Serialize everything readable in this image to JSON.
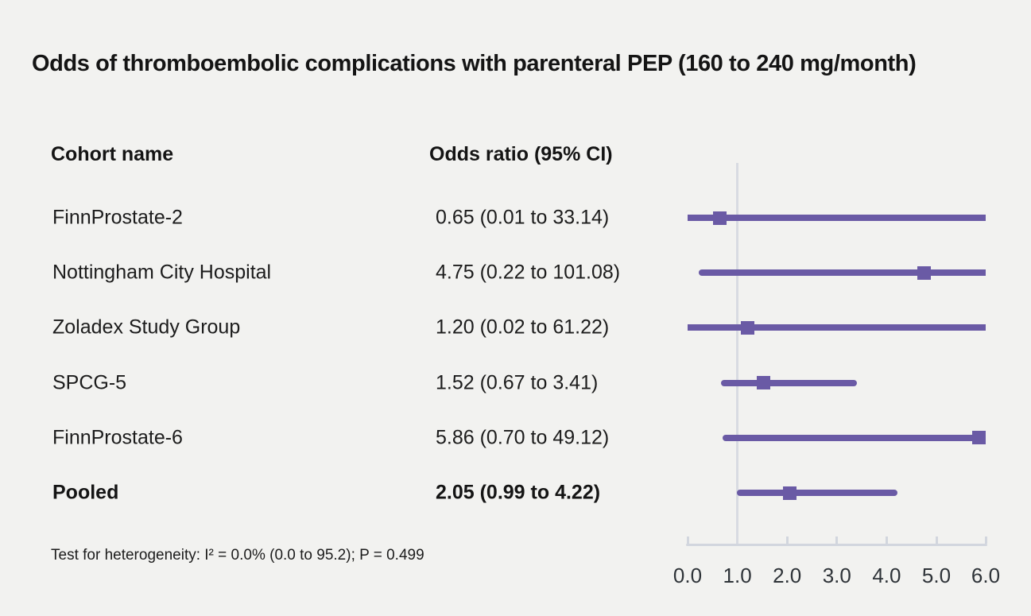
{
  "title": "Odds of thromboembolic complications with parenteral PEP (160 to 240 mg/month)",
  "table": {
    "cohort_header": "Cohort name",
    "or_header": "Odds ratio (95% CI)"
  },
  "footnote": "Test for heterogeneity: I² = 0.0% (0.0 to 95.2); P = 0.499",
  "colors": {
    "background": "#f2f2f0",
    "accent_purple": "#6a5aa5",
    "reference_line": "#d8dbe2",
    "axis": "#d2d6de",
    "text": "#1a1a1a"
  },
  "chart_data": {
    "type": "forest-plot",
    "title": "Odds of thromboembolic complications with parenteral PEP (160 to 240 mg/month)",
    "xlabel": "",
    "axis": {
      "min": 0.0,
      "max": 6.0,
      "tick_values": [
        0.0,
        1.0,
        2.0,
        3.0,
        4.0,
        5.0,
        6.0
      ],
      "tick_labels": [
        "0.0",
        "1.0",
        "2.0",
        "3.0",
        "4.0",
        "5.0",
        "6.0"
      ],
      "reference_line": 1.0,
      "grid": false
    },
    "rows": [
      {
        "cohort": "FinnProstate-2",
        "or": 0.65,
        "ci_low": 0.01,
        "ci_high": 33.14,
        "label": "0.65 (0.01 to 33.14)",
        "bold": false
      },
      {
        "cohort": "Nottingham City Hospital",
        "or": 4.75,
        "ci_low": 0.22,
        "ci_high": 101.08,
        "label": "4.75 (0.22 to 101.08)",
        "bold": false
      },
      {
        "cohort": "Zoladex Study Group",
        "or": 1.2,
        "ci_low": 0.02,
        "ci_high": 61.22,
        "label": "1.20 (0.02 to 61.22)",
        "bold": false
      },
      {
        "cohort": "SPCG-5",
        "or": 1.52,
        "ci_low": 0.67,
        "ci_high": 3.41,
        "label": "1.52 (0.67 to 3.41)",
        "bold": false
      },
      {
        "cohort": "FinnProstate-6",
        "or": 5.86,
        "ci_low": 0.7,
        "ci_high": 49.12,
        "label": "5.86 (0.70 to 49.12)",
        "bold": false
      },
      {
        "cohort": "Pooled",
        "or": 2.05,
        "ci_low": 0.99,
        "ci_high": 4.22,
        "label": "2.05 (0.99 to 4.22)",
        "bold": true
      }
    ]
  }
}
